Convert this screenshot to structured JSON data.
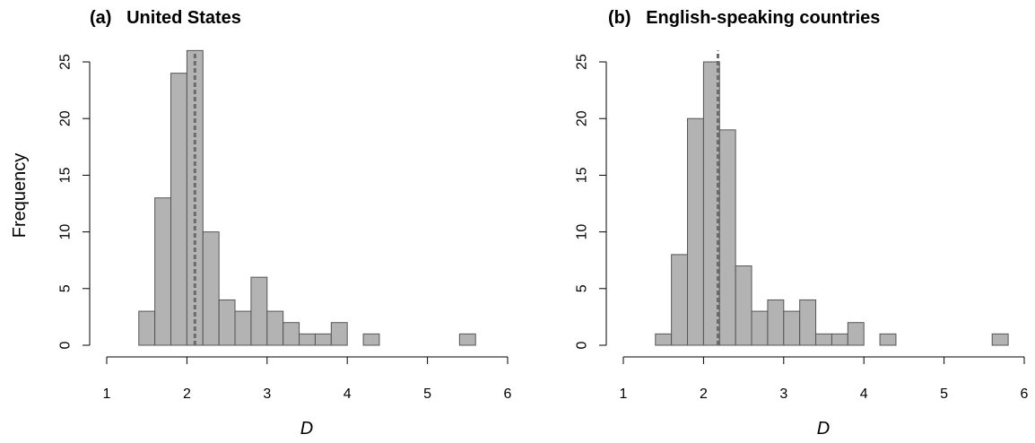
{
  "chart_data": [
    {
      "type": "histogram",
      "title": "(a)   United States",
      "xlabel": "D",
      "ylabel": "Frequency",
      "xlim": [
        1,
        6
      ],
      "ylim": [
        0,
        25
      ],
      "x_ticks": [
        "1",
        "2",
        "3",
        "4",
        "5",
        "6"
      ],
      "y_ticks": [
        "0",
        "5",
        "10",
        "15",
        "20",
        "25"
      ],
      "bin_width": 0.2,
      "bins": [
        {
          "x0": 1.4,
          "x1": 1.6,
          "count": 3
        },
        {
          "x0": 1.6,
          "x1": 1.8,
          "count": 13
        },
        {
          "x0": 1.8,
          "x1": 2.0,
          "count": 24
        },
        {
          "x0": 2.0,
          "x1": 2.2,
          "count": 26
        },
        {
          "x0": 2.2,
          "x1": 2.4,
          "count": 10
        },
        {
          "x0": 2.4,
          "x1": 2.6,
          "count": 4
        },
        {
          "x0": 2.6,
          "x1": 2.8,
          "count": 3
        },
        {
          "x0": 2.8,
          "x1": 3.0,
          "count": 6
        },
        {
          "x0": 3.0,
          "x1": 3.2,
          "count": 3
        },
        {
          "x0": 3.2,
          "x1": 3.4,
          "count": 2
        },
        {
          "x0": 3.4,
          "x1": 3.6,
          "count": 1
        },
        {
          "x0": 3.6,
          "x1": 3.8,
          "count": 1
        },
        {
          "x0": 3.8,
          "x1": 4.0,
          "count": 2
        },
        {
          "x0": 4.2,
          "x1": 4.4,
          "count": 1
        },
        {
          "x0": 5.4,
          "x1": 5.6,
          "count": 1
        }
      ],
      "reference_line": {
        "x": 2.1,
        "style": "dashed",
        "color": "#6b6b6b"
      },
      "bar_color": "#b3b3b3",
      "grid": false
    },
    {
      "type": "histogram",
      "title": "(b)   English-speaking countries",
      "xlabel": "D",
      "ylabel": "",
      "xlim": [
        1,
        6
      ],
      "ylim": [
        0,
        25
      ],
      "x_ticks": [
        "1",
        "2",
        "3",
        "4",
        "5",
        "6"
      ],
      "y_ticks": [
        "0",
        "5",
        "10",
        "15",
        "20",
        "25"
      ],
      "bin_width": 0.2,
      "bins": [
        {
          "x0": 1.4,
          "x1": 1.6,
          "count": 1
        },
        {
          "x0": 1.6,
          "x1": 1.8,
          "count": 8
        },
        {
          "x0": 1.8,
          "x1": 2.0,
          "count": 20
        },
        {
          "x0": 2.0,
          "x1": 2.2,
          "count": 25
        },
        {
          "x0": 2.2,
          "x1": 2.4,
          "count": 19
        },
        {
          "x0": 2.4,
          "x1": 2.6,
          "count": 7
        },
        {
          "x0": 2.6,
          "x1": 2.8,
          "count": 3
        },
        {
          "x0": 2.8,
          "x1": 3.0,
          "count": 4
        },
        {
          "x0": 3.0,
          "x1": 3.2,
          "count": 3
        },
        {
          "x0": 3.2,
          "x1": 3.4,
          "count": 4
        },
        {
          "x0": 3.4,
          "x1": 3.6,
          "count": 1
        },
        {
          "x0": 3.6,
          "x1": 3.8,
          "count": 1
        },
        {
          "x0": 3.8,
          "x1": 4.0,
          "count": 2
        },
        {
          "x0": 4.2,
          "x1": 4.4,
          "count": 1
        },
        {
          "x0": 5.6,
          "x1": 5.8,
          "count": 1
        }
      ],
      "reference_line": {
        "x": 2.18,
        "style": "dashed",
        "color": "#6b6b6b"
      },
      "bar_color": "#b3b3b3",
      "grid": false
    }
  ]
}
